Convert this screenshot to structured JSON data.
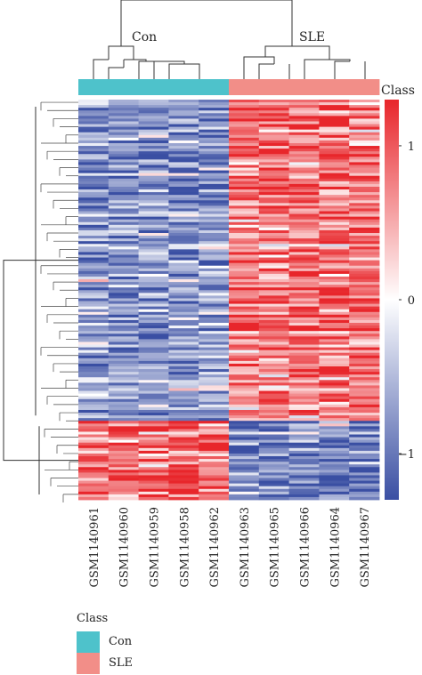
{
  "chart_data": {
    "type": "heatmap",
    "columns": [
      "GSM1140961",
      "GSM1140960",
      "GSM1140959",
      "GSM1140958",
      "GSM1140962",
      "GSM1140963",
      "GSM1140965",
      "GSM1140966",
      "GSM1140964",
      "GSM1140967"
    ],
    "column_groups": [
      "Con",
      "Con",
      "Con",
      "Con",
      "Con",
      "SLE",
      "SLE",
      "SLE",
      "SLE",
      "SLE"
    ],
    "group_labels": [
      "Con",
      "SLE"
    ],
    "row_blocks": [
      {
        "n_rows": 118,
        "Con_mean": -0.75,
        "SLE_mean": 0.8
      },
      {
        "n_rows": 29,
        "Con_mean": 0.85,
        "SLE_mean": -0.85
      }
    ],
    "color_scale": {
      "min": -1.3,
      "max": 1.3,
      "ticks": [
        1,
        0,
        -1
      ],
      "colors": [
        "#3a4fa3",
        "#ffffff",
        "#e8262b"
      ]
    },
    "annotation_title": "Class",
    "grid": false,
    "legend_position": "right"
  },
  "colors": {
    "Con": "#4ec2cb",
    "SLE": "#f28e88"
  },
  "legend": {
    "title": "Class",
    "items": [
      {
        "label": "Con",
        "color": "#4ec2cb"
      },
      {
        "label": "SLE",
        "color": "#f28e88"
      }
    ]
  }
}
